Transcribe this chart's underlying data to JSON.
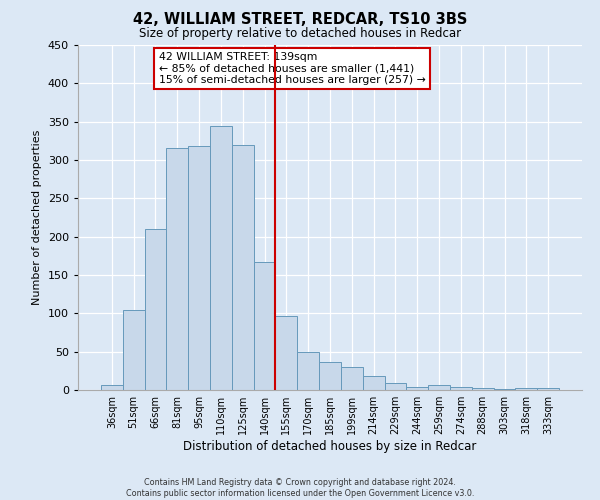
{
  "title": "42, WILLIAM STREET, REDCAR, TS10 3BS",
  "subtitle": "Size of property relative to detached houses in Redcar",
  "xlabel": "Distribution of detached houses by size in Redcar",
  "ylabel": "Number of detached properties",
  "bin_labels": [
    "36sqm",
    "51sqm",
    "66sqm",
    "81sqm",
    "95sqm",
    "110sqm",
    "125sqm",
    "140sqm",
    "155sqm",
    "170sqm",
    "185sqm",
    "199sqm",
    "214sqm",
    "229sqm",
    "244sqm",
    "259sqm",
    "274sqm",
    "288sqm",
    "303sqm",
    "318sqm",
    "333sqm"
  ],
  "bar_heights": [
    7,
    105,
    210,
    316,
    318,
    345,
    319,
    167,
    97,
    50,
    36,
    30,
    18,
    9,
    4,
    6,
    4,
    2,
    1,
    2,
    2
  ],
  "bar_color": "#c8d8ea",
  "bar_edge_color": "#6699bb",
  "vline_x": 7,
  "vline_color": "#cc0000",
  "ylim": [
    0,
    450
  ],
  "yticks": [
    0,
    50,
    100,
    150,
    200,
    250,
    300,
    350,
    400,
    450
  ],
  "annotation_title": "42 WILLIAM STREET: 139sqm",
  "annotation_line1": "← 85% of detached houses are smaller (1,441)",
  "annotation_line2": "15% of semi-detached houses are larger (257) →",
  "annotation_box_color": "#ffffff",
  "annotation_box_edge_color": "#cc0000",
  "footer_line1": "Contains HM Land Registry data © Crown copyright and database right 2024.",
  "footer_line2": "Contains public sector information licensed under the Open Government Licence v3.0.",
  "background_color": "#dce8f5",
  "plot_bg_color": "#dce8f5"
}
